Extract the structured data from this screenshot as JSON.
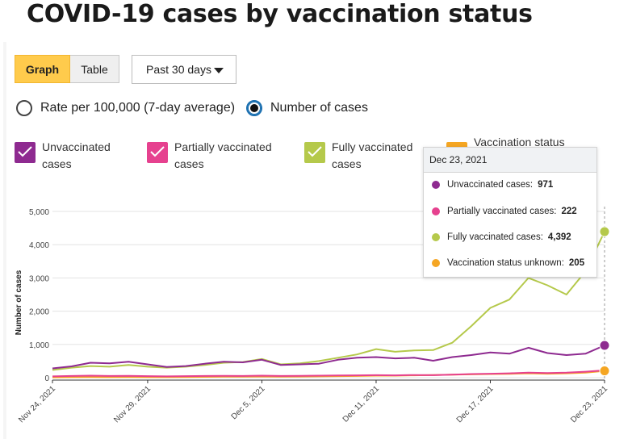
{
  "page": {
    "title": "COVID-19 cases by vaccination status"
  },
  "controls": {
    "view_toggle": [
      {
        "label": "Graph",
        "active": true
      },
      {
        "label": "Table",
        "active": false
      }
    ],
    "date_range": {
      "selected": "Past 30 days"
    },
    "metric": [
      {
        "label": "Rate per 100,000 (7-day average)",
        "checked": false
      },
      {
        "label": "Number of cases",
        "checked": true
      }
    ]
  },
  "legend": [
    {
      "line1": "Unvaccinated",
      "line2": "cases",
      "color": "#8e2a90"
    },
    {
      "line1": "Partially vaccinated",
      "line2": "cases",
      "color": "#e6418f"
    },
    {
      "line1": "Fully vaccinated",
      "line2": "cases",
      "color": "#b5c94b"
    },
    {
      "line1": "Vaccination status",
      "line2": "",
      "color": "#f5a623"
    }
  ],
  "tooltip": {
    "date": "Dec 23, 2021",
    "rows": [
      {
        "label": "Unvaccinated cases:",
        "value": "971",
        "color": "#8e2a90"
      },
      {
        "label": "Partially vaccinated cases:",
        "value": "222",
        "color": "#e6418f"
      },
      {
        "label": "Fully vaccinated cases:",
        "value": "4,392",
        "color": "#b5c94b"
      },
      {
        "label": "Vaccination status unknown:",
        "value": "205",
        "color": "#f5a623"
      }
    ]
  },
  "chart_data": {
    "type": "line",
    "ylabel": "Number of cases",
    "xlabel": "",
    "ylim": [
      0,
      5000
    ],
    "yticks": [
      0,
      1000,
      2000,
      3000,
      4000,
      5000
    ],
    "ytick_labels": [
      "0",
      "1,000",
      "2,000",
      "3,000",
      "4,000",
      "5,000"
    ],
    "grid": true,
    "x": [
      "Nov 24, 2021",
      "Nov 25, 2021",
      "Nov 26, 2021",
      "Nov 27, 2021",
      "Nov 28, 2021",
      "Nov 29, 2021",
      "Nov 30, 2021",
      "Dec 1, 2021",
      "Dec 2, 2021",
      "Dec 3, 2021",
      "Dec 4, 2021",
      "Dec 5, 2021",
      "Dec 6, 2021",
      "Dec 7, 2021",
      "Dec 8, 2021",
      "Dec 9, 2021",
      "Dec 10, 2021",
      "Dec 11, 2021",
      "Dec 12, 2021",
      "Dec 13, 2021",
      "Dec 14, 2021",
      "Dec 15, 2021",
      "Dec 16, 2021",
      "Dec 17, 2021",
      "Dec 18, 2021",
      "Dec 19, 2021",
      "Dec 20, 2021",
      "Dec 21, 2021",
      "Dec 22, 2021",
      "Dec 23, 2021"
    ],
    "xtick_labels": [
      "Nov 24, 2021",
      "Nov 29, 2021",
      "Dec 5, 2021",
      "Dec 11, 2021",
      "Dec 17, 2021",
      "Dec 23, 2021"
    ],
    "xtick_index": [
      0,
      5,
      11,
      17,
      23,
      29
    ],
    "series": [
      {
        "name": "Unvaccinated cases",
        "color": "#8e2a90",
        "values": [
          280,
          340,
          450,
          430,
          480,
          400,
          320,
          350,
          420,
          480,
          460,
          540,
          380,
          400,
          420,
          540,
          600,
          620,
          580,
          600,
          510,
          620,
          680,
          760,
          720,
          900,
          740,
          680,
          720,
          971
        ]
      },
      {
        "name": "Partially vaccinated cases",
        "color": "#e6418f",
        "values": [
          40,
          50,
          60,
          50,
          55,
          45,
          40,
          45,
          50,
          55,
          50,
          60,
          50,
          55,
          60,
          65,
          70,
          75,
          70,
          80,
          75,
          90,
          110,
          120,
          130,
          150,
          140,
          150,
          180,
          222
        ]
      },
      {
        "name": "Fully vaccinated cases",
        "color": "#b5c94b",
        "values": [
          230,
          300,
          350,
          330,
          380,
          330,
          300,
          330,
          380,
          450,
          470,
          560,
          400,
          430,
          500,
          600,
          700,
          860,
          780,
          820,
          830,
          1050,
          1550,
          2100,
          2350,
          3000,
          2780,
          2500,
          3200,
          4392
        ]
      },
      {
        "name": "Vaccination status unknown",
        "color": "#f5a623",
        "values": [
          10,
          15,
          20,
          15,
          20,
          15,
          15,
          20,
          25,
          30,
          30,
          35,
          30,
          35,
          40,
          45,
          50,
          60,
          60,
          70,
          80,
          90,
          100,
          110,
          115,
          130,
          120,
          130,
          150,
          205
        ]
      }
    ]
  }
}
